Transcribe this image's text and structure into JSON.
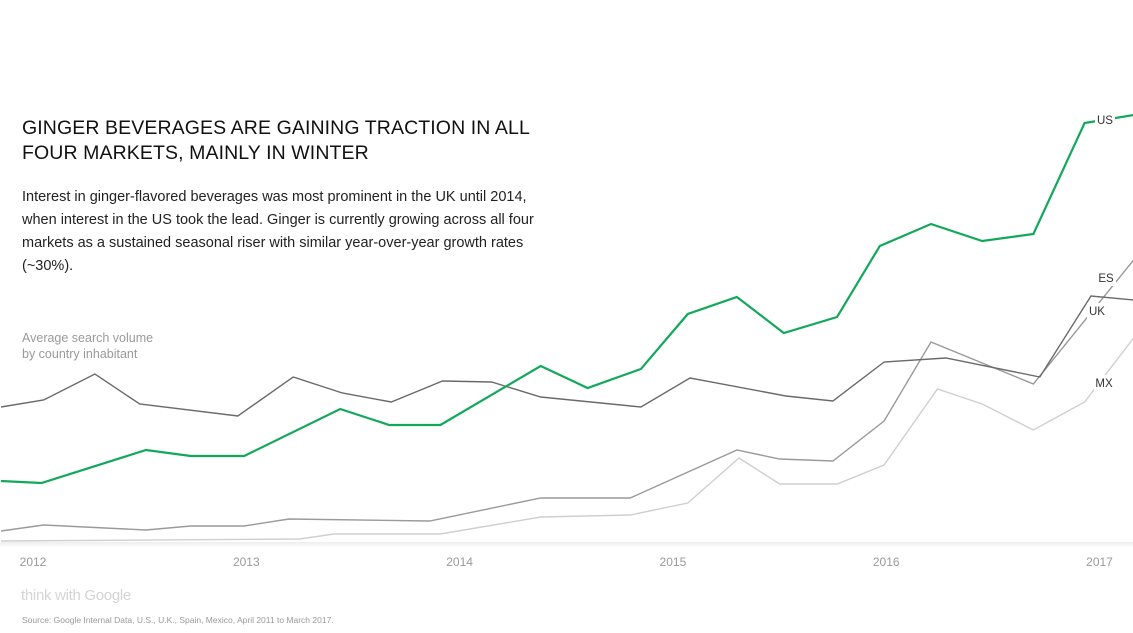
{
  "title_line1": "GINGER BEVERAGES ARE GAINING TRACTION IN ALL",
  "title_line2": "FOUR MARKETS, MAINLY IN WINTER",
  "description": "Interest in ginger-flavored beverages was most prominent in the UK until 2014, when interest in the US took the lead. Ginger is currently growing across all four markets as a sustained seasonal riser with similar year-over-year growth rates (~30%).",
  "y_label_line1": "Average search volume",
  "y_label_line2": "by country inhabitant",
  "logo_text": "think with Google",
  "source": "Source: Google Internal Data, U.S., U.K., Spain, Mexico, April 2011 to March 2017.",
  "chart_data": {
    "type": "line",
    "title": "GINGER BEVERAGES ARE GAINING TRACTION IN ALL FOUR MARKETS, MAINLY IN WINTER",
    "xlabel": "",
    "ylabel": "Average search volume by country inhabitant",
    "xticks": [
      "2012",
      "2013",
      "2014",
      "2015",
      "2016",
      "2017"
    ],
    "xlim": [
      2011.85,
      2017.16
    ],
    "ylim": [
      0,
      460
    ],
    "grid": false,
    "series": [
      {
        "name": "US",
        "color": "#12a85a",
        "width": 2.2,
        "x": [
          2011.85,
          2012.04,
          2012.53,
          2012.74,
          2012.99,
          2013.44,
          2013.67,
          2013.91,
          2014.38,
          2014.6,
          2014.85,
          2015.07,
          2015.3,
          2015.52,
          2015.77,
          2015.97,
          2016.21,
          2016.45,
          2016.69,
          2016.93,
          2017.16
        ],
        "y": [
          79,
          77,
          110,
          104,
          104,
          151,
          135,
          135,
          194,
          172,
          191,
          246,
          263,
          227,
          243,
          314,
          336,
          319,
          326,
          437,
          445
        ]
      },
      {
        "name": "UK",
        "color": "#6a6a6a",
        "width": 1.4,
        "x": [
          2011.85,
          2012.05,
          2012.29,
          2012.5,
          2012.96,
          2013.22,
          2013.45,
          2013.68,
          2013.92,
          2014.15,
          2014.38,
          2014.85,
          2015.08,
          2015.53,
          2015.75,
          2015.99,
          2016.28,
          2016.72,
          2016.96,
          2017.16
        ],
        "y": [
          153,
          160,
          186,
          156,
          144,
          183,
          167,
          158,
          179,
          178,
          163,
          153,
          182,
          164,
          159,
          198,
          202,
          183,
          264,
          260
        ]
      },
      {
        "name": "ES",
        "color": "#9a9a9a",
        "width": 1.4,
        "x": [
          2011.85,
          2012.05,
          2012.53,
          2012.74,
          2012.99,
          2013.2,
          2013.86,
          2014.38,
          2014.8,
          2015.3,
          2015.5,
          2015.75,
          2015.99,
          2016.21,
          2016.69,
          2017.16
        ],
        "y": [
          29,
          35,
          30,
          34,
          34,
          41,
          39,
          62,
          62,
          110,
          101,
          99,
          139,
          218,
          176,
          300
        ]
      },
      {
        "name": "MX",
        "color": "#cfcfcf",
        "width": 1.4,
        "x": [
          2011.85,
          2013.25,
          2013.41,
          2013.91,
          2014.38,
          2014.8,
          2015.07,
          2015.31,
          2015.5,
          2015.77,
          2015.99,
          2016.24,
          2016.45,
          2016.69,
          2016.93,
          2017.16
        ],
        "y": [
          19,
          21,
          26,
          26,
          43,
          45,
          57,
          102,
          76,
          76,
          95,
          171,
          156,
          130,
          158,
          222
        ]
      }
    ]
  }
}
